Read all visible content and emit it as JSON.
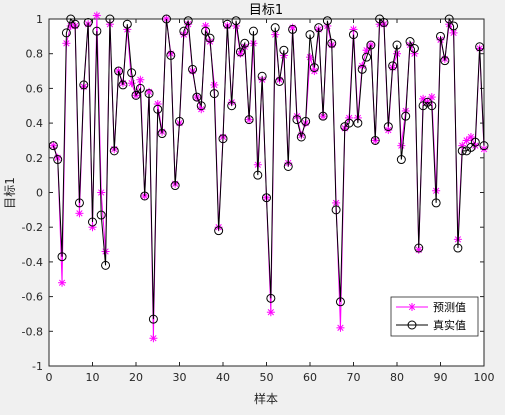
{
  "chart_data": {
    "type": "line",
    "title": "目标1",
    "xlabel": "样本",
    "ylabel": "目标1",
    "xlim": [
      0,
      100
    ],
    "ylim": [
      -1,
      1
    ],
    "xticks": [
      0,
      10,
      20,
      30,
      40,
      50,
      60,
      70,
      80,
      90,
      100
    ],
    "yticks": [
      -1,
      -0.8,
      -0.6,
      -0.4,
      -0.2,
      0,
      0.2,
      0.4,
      0.6,
      0.8,
      1
    ],
    "legend_position": "bottom-right",
    "grid": false,
    "x": [
      1,
      2,
      3,
      4,
      5,
      6,
      7,
      8,
      9,
      10,
      11,
      12,
      13,
      14,
      15,
      16,
      17,
      18,
      19,
      20,
      21,
      22,
      23,
      24,
      25,
      26,
      27,
      28,
      29,
      30,
      31,
      32,
      33,
      34,
      35,
      36,
      37,
      38,
      39,
      40,
      41,
      42,
      43,
      44,
      45,
      46,
      47,
      48,
      49,
      50,
      51,
      52,
      53,
      54,
      55,
      56,
      57,
      58,
      59,
      60,
      61,
      62,
      63,
      64,
      65,
      66,
      67,
      68,
      69,
      70,
      71,
      72,
      73,
      74,
      75,
      76,
      77,
      78,
      79,
      80,
      81,
      82,
      83,
      84,
      85,
      86,
      87,
      88,
      89,
      90,
      91,
      92,
      93,
      94,
      95,
      96,
      97,
      98,
      99,
      100
    ],
    "series": [
      {
        "name": "预测值",
        "color": "#ff00ff",
        "marker": "star",
        "values": [
          0.27,
          0.2,
          -0.52,
          0.86,
          0.96,
          0.96,
          -0.12,
          0.61,
          0.97,
          -0.2,
          1.02,
          0.0,
          -0.34,
          0.97,
          0.25,
          0.7,
          0.63,
          0.94,
          0.63,
          0.56,
          0.65,
          -0.02,
          0.58,
          -0.84,
          0.51,
          0.35,
          1.0,
          0.8,
          0.05,
          0.4,
          0.91,
          0.97,
          0.7,
          0.55,
          0.48,
          0.96,
          0.87,
          0.62,
          -0.2,
          0.32,
          0.96,
          0.52,
          0.96,
          0.8,
          0.84,
          0.42,
          0.86,
          0.16,
          0.65,
          -0.03,
          -0.69,
          0.91,
          0.65,
          0.79,
          0.17,
          0.95,
          0.44,
          0.33,
          0.4,
          0.78,
          0.7,
          0.94,
          0.44,
          0.96,
          0.85,
          -0.06,
          -0.78,
          0.37,
          0.43,
          0.94,
          0.43,
          0.73,
          0.82,
          0.85,
          0.3,
          0.97,
          0.97,
          0.36,
          0.72,
          0.8,
          0.27,
          0.47,
          0.85,
          0.8,
          -0.33,
          0.54,
          0.52,
          0.55,
          0.01,
          0.88,
          0.77,
          0.97,
          0.92,
          -0.27,
          0.27,
          0.3,
          0.32,
          0.27,
          0.83,
          0.25
        ]
      },
      {
        "name": "真实值",
        "color": "#000000",
        "marker": "circle",
        "values": [
          0.27,
          0.19,
          -0.37,
          0.92,
          1.0,
          0.97,
          -0.06,
          0.62,
          0.98,
          -0.17,
          0.93,
          -0.13,
          -0.42,
          1.0,
          0.24,
          0.7,
          0.62,
          0.97,
          0.69,
          0.56,
          0.6,
          -0.02,
          0.57,
          -0.73,
          0.48,
          0.34,
          1.0,
          0.79,
          0.04,
          0.41,
          0.93,
          0.99,
          0.71,
          0.55,
          0.5,
          0.93,
          0.89,
          0.57,
          -0.22,
          0.31,
          0.97,
          0.5,
          0.99,
          0.81,
          0.86,
          0.42,
          0.93,
          0.1,
          0.67,
          -0.03,
          -0.61,
          0.95,
          0.64,
          0.82,
          0.15,
          0.94,
          0.42,
          0.32,
          0.41,
          0.91,
          0.72,
          0.95,
          0.44,
          0.99,
          0.86,
          -0.1,
          -0.63,
          0.38,
          0.4,
          0.91,
          0.4,
          0.71,
          0.78,
          0.85,
          0.3,
          1.0,
          0.98,
          0.38,
          0.73,
          0.85,
          0.19,
          0.44,
          0.87,
          0.83,
          -0.32,
          0.5,
          0.52,
          0.5,
          -0.06,
          0.9,
          0.76,
          1.0,
          0.96,
          -0.32,
          0.24,
          0.24,
          0.26,
          0.29,
          0.84,
          0.27
        ]
      }
    ]
  }
}
